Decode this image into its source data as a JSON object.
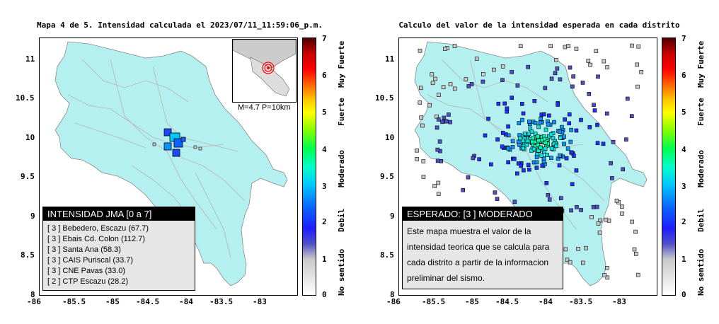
{
  "left_panel": {
    "title": "Mapa 4 de 5. Intensidad calculada el 2023/07/11_11:59:06_p.m.",
    "magnitude_label": "M=4.7 P=10km",
    "legend_header": "INTENSIDAD JMA [0 a 7]",
    "stations": [
      {
        "level": "[ 3 ]",
        "name": "Bebedero, Escazu (67.7)"
      },
      {
        "level": "[ 3 ]",
        "name": "Ebais Cd. Colon (112.7)"
      },
      {
        "level": "[ 3 ]",
        "name": "Santa Ana (58.3)"
      },
      {
        "level": "[ 3 ]",
        "name": "CAIS Puriscal (33.7)"
      },
      {
        "level": "[ 3 ]",
        "name": "CNE Pavas (33.0)"
      },
      {
        "level": "[ 2 ]",
        "name": "CTP Escazu (28.2)"
      }
    ]
  },
  "right_panel": {
    "title": "Calculo del valor de la intensidad esperada en cada distrito",
    "legend_header": "ESPERADO: [3 ] MODERADO",
    "legend_text": "Este mapa muestra el valor de la intensidad teorica que se calcula para cada distrito a partir de la informacion preliminar del sismo."
  },
  "axes": {
    "x_ticks": [
      "-86",
      "-85.5",
      "-85",
      "-84.5",
      "-84",
      "-83.5",
      "-83"
    ],
    "y_ticks": [
      "11",
      "10.5",
      "10",
      "9.5",
      "9",
      "8.5",
      "8"
    ],
    "xlim": [
      -86,
      -82.5
    ],
    "ylim": [
      8,
      11.3
    ]
  },
  "colorbar": {
    "ticks": [
      "7",
      "6",
      "5",
      "4",
      "3",
      "2",
      "1",
      "0"
    ],
    "categories": [
      "Muy Fuerte",
      "Fuerte",
      "Moderado",
      "Debil",
      "No sentido"
    ]
  },
  "colors": {
    "land": "#b4f0f0",
    "background": "#ffffff",
    "roads": "#b4b4b4",
    "epicenter": "#ff0000"
  }
}
